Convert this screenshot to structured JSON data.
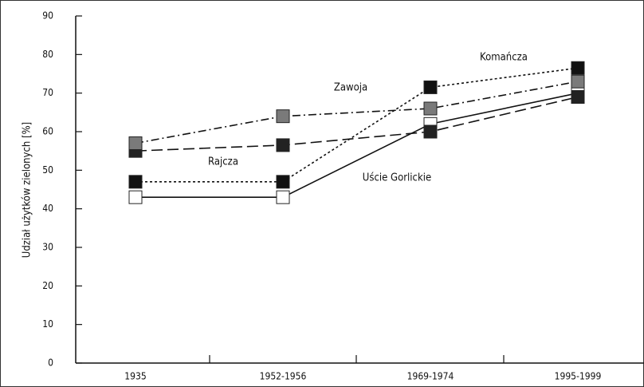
{
  "chart_data": {
    "type": "line",
    "ylabel": "Udział użytków zielonych [%]",
    "categories": [
      "1935",
      "1952-1956",
      "1969-1974",
      "1995-1999"
    ],
    "series": [
      {
        "name": "Uście Gorlickie",
        "color": "#ffffff",
        "dash": "solid",
        "values": [
          43,
          43,
          62,
          70
        ]
      },
      {
        "name": "Rajcza",
        "color": "#222222",
        "dash": "dashed",
        "values": [
          55,
          56.5,
          60,
          69
        ]
      },
      {
        "name": "Zawoja",
        "color": "#7a7a7a",
        "dash": "dashdot",
        "values": [
          57,
          64,
          66,
          73
        ]
      },
      {
        "name": "Komańcza",
        "color": "#111111",
        "dash": "dotted",
        "values": [
          47,
          47,
          71.5,
          76.5
        ]
      }
    ],
    "ylim": [
      0,
      90
    ],
    "yticks": [
      0,
      10,
      20,
      30,
      40,
      50,
      60,
      70,
      80,
      90
    ]
  }
}
